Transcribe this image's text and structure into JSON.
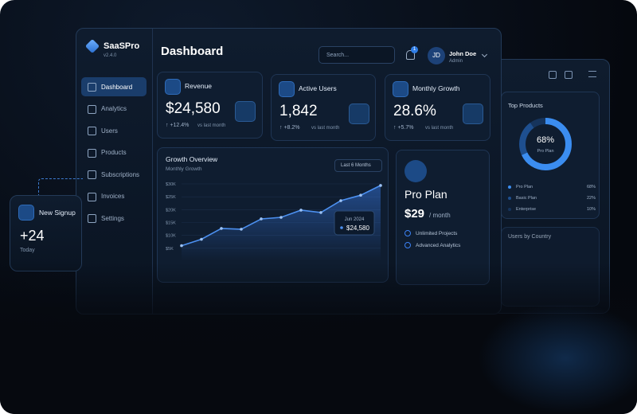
{
  "sidebar": {
    "brand": "SaaSPro",
    "version": "v2.4.0",
    "nav": [
      "Dashboard",
      "Analytics",
      "Users",
      "Products",
      "Subscriptions",
      "Invoices",
      "Settings"
    ]
  },
  "header": {
    "title": "Dashboard",
    "search": "Search...",
    "notifications": "1",
    "avatar": "JD",
    "user": "John Doe",
    "role": "Admin"
  },
  "stats": [
    {
      "label": "Revenue",
      "value": "$24,580",
      "change": "↑ +12.4%",
      "note": "vs last month"
    },
    {
      "label": "Active Users",
      "value": "1,842",
      "change": "↑ +8.2%",
      "note": "vs last month"
    },
    {
      "label": "Monthly Growth",
      "value": "28.6%",
      "change": "↑ +5.7%",
      "note": "vs last month"
    }
  ],
  "growth": {
    "title": "Growth Overview",
    "subtitle": "Monthly Growth",
    "range": "Last 6 Months",
    "ylim": [
      0,
      30000
    ],
    "yticks": [
      {
        "value": 30000,
        "label": "$30K"
      },
      {
        "value": 25000,
        "label": "$25K"
      },
      {
        "value": 20000,
        "label": "$20K"
      },
      {
        "value": 15000,
        "label": "$15K"
      },
      {
        "value": 10000,
        "label": "$10K"
      },
      {
        "value": 5000,
        "label": "$5K"
      }
    ],
    "values": [
      6000,
      8500,
      12700,
      12400,
      16400,
      17000,
      19800,
      18900,
      23500,
      25600,
      29400
    ],
    "tooltip": {
      "date": "Jun 2024",
      "value": "$24,580"
    }
  },
  "plan": {
    "name": "Pro Plan",
    "price": "$29",
    "period": "/ month",
    "features": [
      "Unlimited Projects",
      "Advanced Analytics"
    ]
  },
  "top_products": {
    "title": "Top Products",
    "center_value": "68%",
    "center_label": "Pro Plan",
    "items": [
      {
        "name": "Pro Plan",
        "value": 68,
        "label": "68%",
        "color": "#3b8df0"
      },
      {
        "name": "Basic Plan",
        "value": 22,
        "label": "22%",
        "color": "#1e4f8f"
      },
      {
        "name": "Enterprise",
        "value": 10,
        "label": "10%",
        "color": "#16345c"
      }
    ]
  },
  "users_by_country": {
    "title": "Users by Country"
  },
  "signup": {
    "title": "New Signup",
    "value": "+24",
    "note": "Today"
  }
}
